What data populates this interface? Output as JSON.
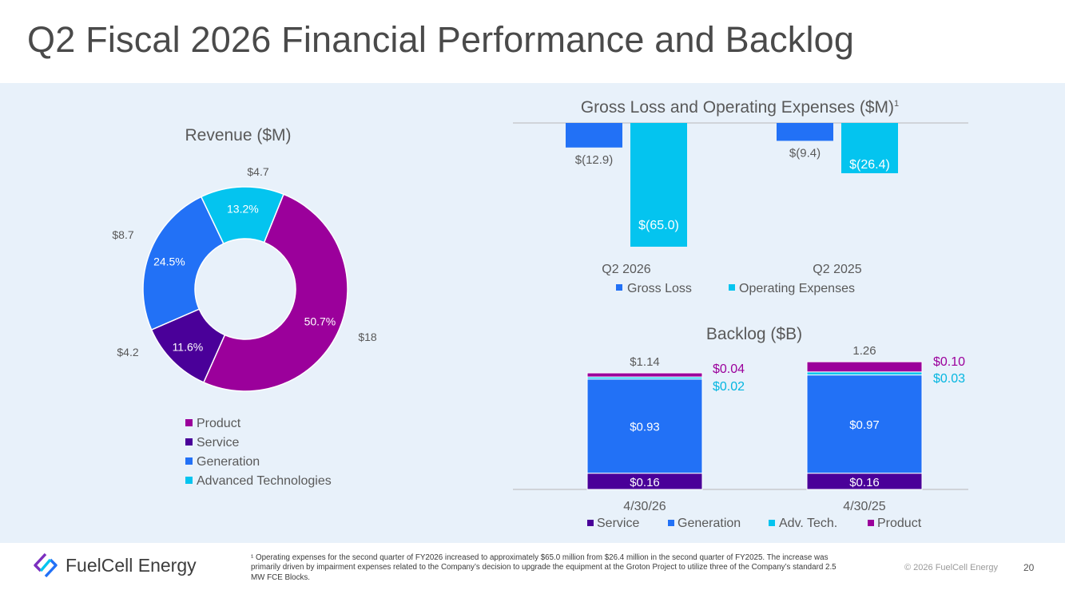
{
  "page": {
    "title": "Q2 Fiscal 2026 Financial Performance and Backlog",
    "footnote": "¹ Operating expenses for the second quarter of FY2026 increased to approximately $65.0 million from $26.4 million in the second quarter of FY2025. The increase was primarily driven by impairment expenses related to the Company’s decision to upgrade the equipment at the Groton Project to utilize three of the Company’s standard 2.5 MW FCE Blocks.",
    "copyright": "© 2026 FuelCell Energy",
    "page_number": "20",
    "logo_text": "FuelCell Energy",
    "logo_icon": "fuelcell-diamond-icon"
  },
  "colors": {
    "product": "#9b009b",
    "service": "#4a0099",
    "generation": "#2271f6",
    "advanced": "#04c4ef",
    "panel": "#e8f1fa"
  },
  "chart_data": [
    {
      "type": "pie",
      "title": "Revenue ($M)",
      "donut": true,
      "slices": [
        {
          "name": "Product",
          "value": 18,
          "value_label": "$18",
          "pct_label": "50.7%",
          "color": "#9b009b"
        },
        {
          "name": "Service",
          "value": 4.2,
          "value_label": "$4.2",
          "pct_label": "11.6%",
          "color": "#4a0099"
        },
        {
          "name": "Generation",
          "value": 8.7,
          "value_label": "$8.7",
          "pct_label": "24.5%",
          "color": "#2271f6"
        },
        {
          "name": "Advanced Technologies",
          "value": 4.7,
          "value_label": "$4.7",
          "pct_label": "13.2%",
          "color": "#04c4ef"
        }
      ],
      "legend": [
        "Product",
        "Service",
        "Generation",
        "Advanced Technologies"
      ],
      "legend_position": "bottom"
    },
    {
      "type": "bar",
      "title": "Gross Loss and Operating Expenses ($M)",
      "title_superscript": "1",
      "categories": [
        "Q2 2026",
        "Q2 2025"
      ],
      "series": [
        {
          "name": "Gross Loss",
          "values": [
            -12.9,
            -9.4
          ],
          "labels": [
            "$(12.9)",
            "$(9.4)"
          ],
          "color": "#2271f6"
        },
        {
          "name": "Operating Expenses",
          "values": [
            -65.0,
            -26.4
          ],
          "labels": [
            "$(65.0)",
            "$(26.4)"
          ],
          "color": "#04c4ef"
        }
      ],
      "ylim": [
        -70,
        0
      ],
      "legend_position": "bottom"
    },
    {
      "type": "bar",
      "stacked": true,
      "title": "Backlog ($B)",
      "categories": [
        "4/30/26",
        "4/30/25"
      ],
      "totals": [
        "$1.14",
        "1.26"
      ],
      "series": [
        {
          "name": "Service",
          "values": [
            0.16,
            0.16
          ],
          "labels": [
            "$0.16",
            "$0.16"
          ],
          "color": "#4a0099"
        },
        {
          "name": "Generation",
          "values": [
            0.93,
            0.97
          ],
          "labels": [
            "$0.93",
            "$0.97"
          ],
          "color": "#2271f6"
        },
        {
          "name": "Adv. Tech.",
          "values": [
            0.02,
            0.03
          ],
          "labels": [
            "$0.02",
            "$0.03"
          ],
          "color": "#04c4ef"
        },
        {
          "name": "Product",
          "values": [
            0.04,
            0.1
          ],
          "labels": [
            "$0.04",
            "$0.10"
          ],
          "color": "#9b009b"
        }
      ],
      "legend_position": "bottom"
    }
  ]
}
